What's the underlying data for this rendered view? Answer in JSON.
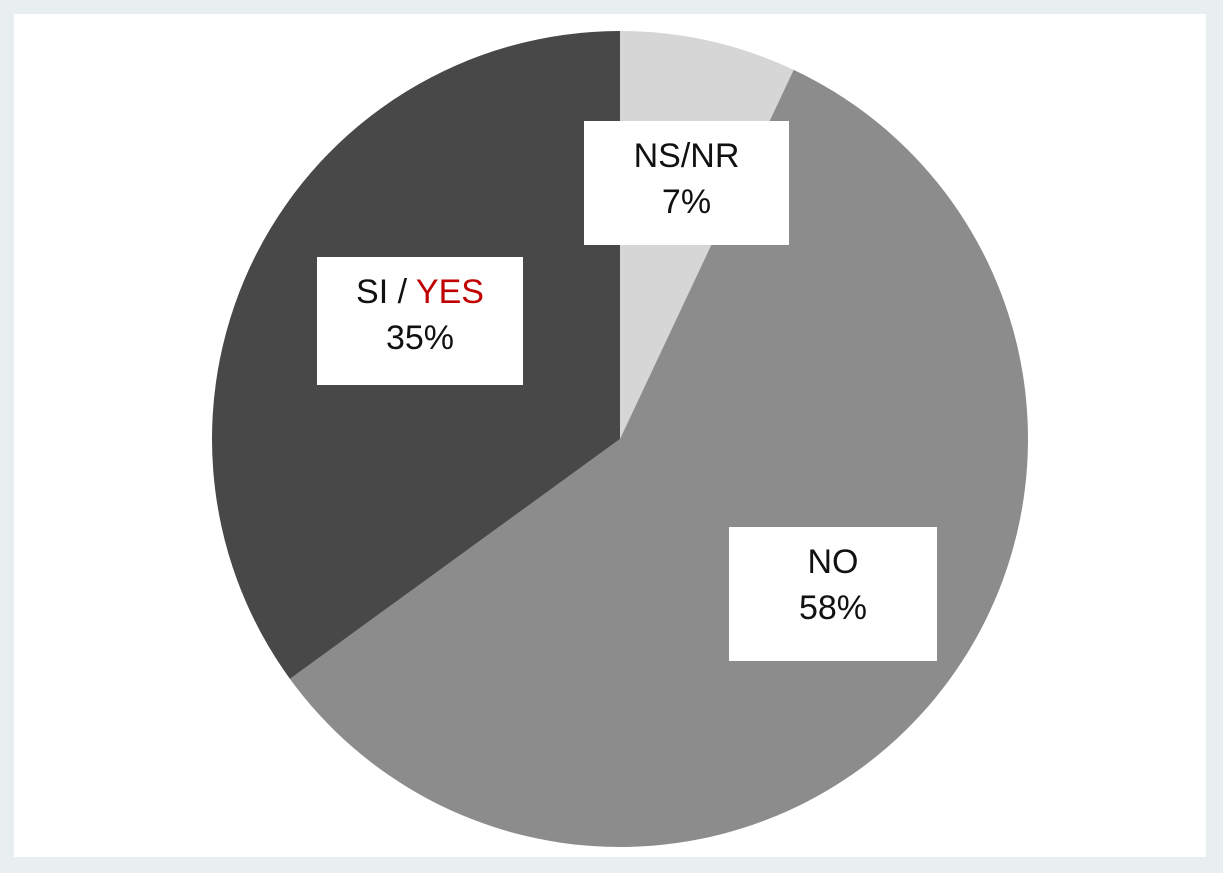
{
  "chart_data": {
    "type": "pie",
    "slices": [
      {
        "label": "NS/NR",
        "value": 7,
        "value_label": "7%",
        "color": "#d6d6d6"
      },
      {
        "label": "NO",
        "value": 58,
        "value_label": "58%",
        "color": "#8c8c8c"
      },
      {
        "label_parts": [
          "SI",
          "YES"
        ],
        "label": "SI / YES",
        "value": 35,
        "value_label": "35%",
        "color": "#484848"
      }
    ],
    "start_angle_deg": 0,
    "direction": "clockwise",
    "label_style": {
      "box_background": "#ffffff",
      "text_color": "#111111",
      "highlight_color": "#c00000"
    }
  },
  "labels": {
    "nsnr": {
      "name": "NS/NR",
      "pct": "7%"
    },
    "yes": {
      "si": "SI",
      "sep": " / ",
      "yes": "YES",
      "pct": "35%"
    },
    "no": {
      "name": "NO",
      "pct": "58%"
    }
  }
}
